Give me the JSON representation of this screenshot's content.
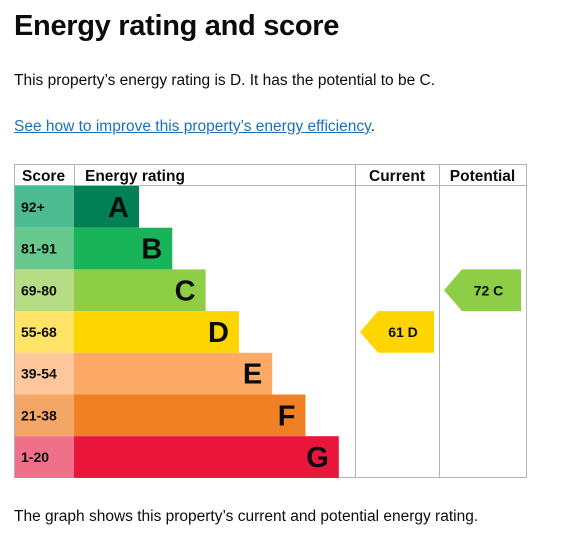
{
  "page": {
    "title": "Energy rating and score",
    "summary": "This property’s energy rating is D. It has the potential to be C.",
    "link_text": "See how to improve this property’s energy efficiency",
    "link_suffix": ".",
    "caption": "The graph shows this property’s current and potential energy rating."
  },
  "chart_data": {
    "type": "bar",
    "headers": {
      "score": "Score",
      "rating": "Energy rating",
      "current": "Current",
      "potential": "Potential"
    },
    "bands": [
      {
        "score": "92+",
        "letter": "A",
        "color": "#008054",
        "score_color": "#4dbb91",
        "level": 1
      },
      {
        "score": "81-91",
        "letter": "B",
        "color": "#19b459",
        "score_color": "#66c88c",
        "level": 2
      },
      {
        "score": "69-80",
        "letter": "C",
        "color": "#8dce46",
        "score_color": "#b6dc85",
        "level": 3
      },
      {
        "score": "55-68",
        "letter": "D",
        "color": "#ffd500",
        "score_color": "#ffe366",
        "level": 4
      },
      {
        "score": "39-54",
        "letter": "E",
        "color": "#fcaa65",
        "score_color": "#fdc79b",
        "level": 5
      },
      {
        "score": "21-38",
        "letter": "F",
        "color": "#ef8023",
        "score_color": "#f4a667",
        "level": 6
      },
      {
        "score": "1-20",
        "letter": "G",
        "color": "#e9153b",
        "score_color": "#f07089",
        "level": 7
      }
    ],
    "current": {
      "score": 61,
      "letter": "D",
      "label": "61 D",
      "color": "#ffd500"
    },
    "potential": {
      "score": 72,
      "letter": "C",
      "label": "72 C",
      "color": "#8dce46"
    }
  }
}
